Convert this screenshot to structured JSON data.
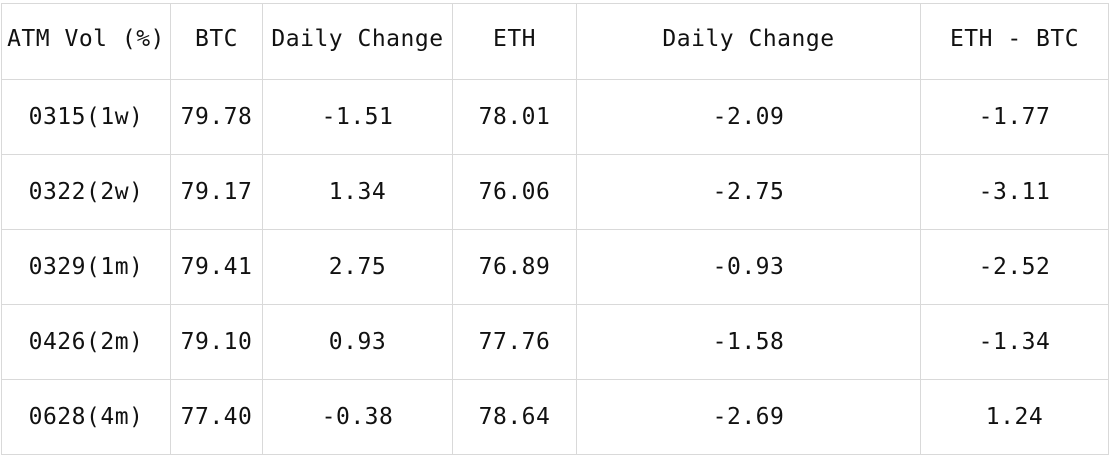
{
  "table": {
    "headers": [
      "ATM Vol (%)",
      "BTC",
      "Daily Change",
      "ETH",
      "Daily Change",
      "ETH - BTC"
    ],
    "rows": [
      [
        "0315(1w)",
        "79.78",
        "-1.51",
        "78.01",
        "-2.09",
        "-1.77"
      ],
      [
        "0322(2w)",
        "79.17",
        "1.34",
        "76.06",
        "-2.75",
        "-3.11"
      ],
      [
        "0329(1m)",
        "79.41",
        "2.75",
        "76.89",
        "-0.93",
        "-2.52"
      ],
      [
        "0426(2m)",
        "79.10",
        "0.93",
        "77.76",
        "-1.58",
        "-1.34"
      ],
      [
        "0628(4m)",
        "77.40",
        "-0.38",
        "78.64",
        "-2.69",
        "1.24"
      ]
    ]
  }
}
